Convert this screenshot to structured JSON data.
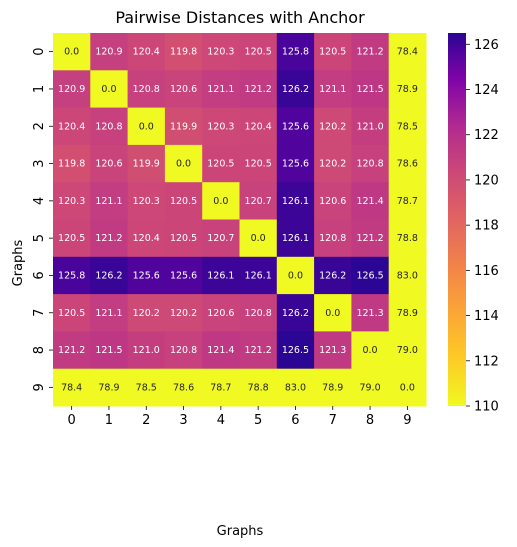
{
  "chart_data": {
    "type": "heatmap",
    "title": "Pairwise Distances with Anchor",
    "xlabel": "Graphs",
    "ylabel": "Graphs",
    "x_categories": [
      "0",
      "1",
      "2",
      "3",
      "4",
      "5",
      "6",
      "7",
      "8",
      "9"
    ],
    "y_categories": [
      "0",
      "1",
      "2",
      "3",
      "4",
      "5",
      "6",
      "7",
      "8",
      "9"
    ],
    "values": [
      [
        0.0,
        120.9,
        120.4,
        119.8,
        120.3,
        120.5,
        125.8,
        120.5,
        121.2,
        78.4
      ],
      [
        120.9,
        0.0,
        120.8,
        120.6,
        121.1,
        121.2,
        126.2,
        121.1,
        121.5,
        78.9
      ],
      [
        120.4,
        120.8,
        0.0,
        119.9,
        120.3,
        120.4,
        125.6,
        120.2,
        121.0,
        78.5
      ],
      [
        119.8,
        120.6,
        119.9,
        0.0,
        120.5,
        120.5,
        125.6,
        120.2,
        120.8,
        78.6
      ],
      [
        120.3,
        121.1,
        120.3,
        120.5,
        0.0,
        120.7,
        126.1,
        120.6,
        121.4,
        78.7
      ],
      [
        120.5,
        121.2,
        120.4,
        120.5,
        120.7,
        0.0,
        126.1,
        120.8,
        121.2,
        78.8
      ],
      [
        125.8,
        126.2,
        125.6,
        125.6,
        126.1,
        126.1,
        0.0,
        126.2,
        126.5,
        83.0
      ],
      [
        120.5,
        121.1,
        120.2,
        120.2,
        120.6,
        120.8,
        126.2,
        0.0,
        121.3,
        78.9
      ],
      [
        121.2,
        121.5,
        121.0,
        120.8,
        121.4,
        121.2,
        126.5,
        121.3,
        0.0,
        79.0
      ],
      [
        78.4,
        78.9,
        78.5,
        78.6,
        78.7,
        78.8,
        83.0,
        78.9,
        79.0,
        0.0
      ]
    ],
    "colormap": "plasma_r",
    "vmin": 110,
    "vmax": 126.5,
    "colorbar_ticks": [
      "110",
      "112",
      "114",
      "116",
      "118",
      "120",
      "122",
      "124",
      "126"
    ],
    "grid": false
  }
}
